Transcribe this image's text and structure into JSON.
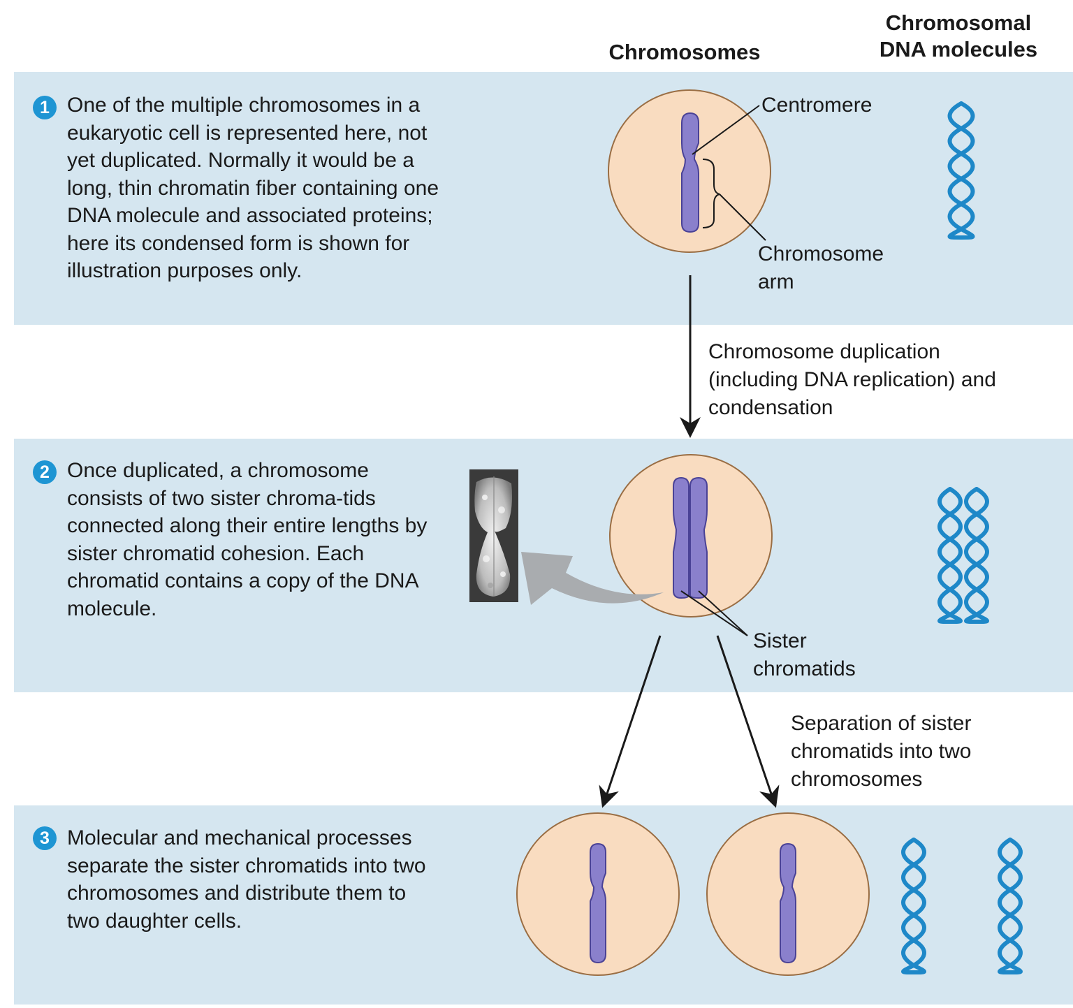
{
  "headers": {
    "chromosomes": "Chromosomes",
    "dna_molecules": "Chromosomal DNA molecules"
  },
  "steps": [
    {
      "number": "1",
      "text": "One of the multiple chromosomes in a eukaryotic cell is represented here, not yet duplicated. Normally it would be a long, thin chromatin fiber containing one DNA molecule and associated proteins; here its condensed form is shown for illustration purposes only."
    },
    {
      "number": "2",
      "text": "Once duplicated, a chromosome consists of two sister chroma-tids connected along their entire lengths by sister chromatid cohesion. Each chromatid contains a copy of the DNA molecule."
    },
    {
      "number": "3",
      "text": "Molecular and mechanical processes separate the sister chromatids into two chromosomes and distribute them to two daughter cells."
    }
  ],
  "labels": {
    "centromere": "Centromere",
    "chromosome_arm": "Chromosome arm",
    "sister_chromatids": "Sister chromatids"
  },
  "transitions": {
    "duplication": "Chromosome duplication (including DNA replication) and condensation",
    "separation": "Separation of sister chromatids into two chromosomes"
  },
  "colors": {
    "band": "#d5e6f0",
    "badge": "#1e95d3",
    "cell_fill": "#f9dcc0",
    "cell_stroke": "#9a6e44",
    "chromosome": "#8a80cc",
    "chromosome_stroke": "#4a4296",
    "dna": "#1e88c8"
  },
  "icons": {
    "micrograph": "chromosome-micrograph",
    "curved_arrow": "gray-curved-arrow"
  }
}
